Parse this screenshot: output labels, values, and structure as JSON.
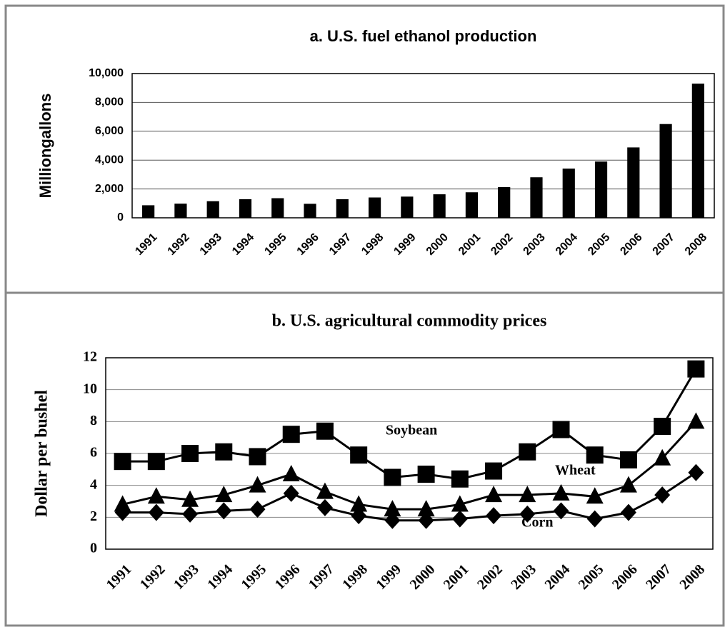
{
  "chart_data": [
    {
      "type": "bar",
      "title": "a. U.S. fuel ethanol production",
      "y_label": "Milliongallons",
      "categories": [
        "1991",
        "1992",
        "1993",
        "1994",
        "1995",
        "1996",
        "1997",
        "1998",
        "1999",
        "2000",
        "2001",
        "2002",
        "2003",
        "2004",
        "2005",
        "2006",
        "2007",
        "2008"
      ],
      "values": [
        870,
        980,
        1150,
        1290,
        1360,
        970,
        1290,
        1410,
        1470,
        1630,
        1770,
        2130,
        2810,
        3410,
        3900,
        4880,
        6500,
        9300
      ],
      "color": "#000000",
      "ylim": [
        0,
        10000
      ],
      "yticks": [
        0,
        {
          "value": 2000,
          "label": "2,000"
        },
        {
          "value": 4000,
          "label": "4,000"
        },
        {
          "value": 6000,
          "label": "6,000"
        },
        {
          "value": 8000,
          "label": "8,000"
        },
        {
          "value": 10000,
          "label": "10,000"
        }
      ],
      "grid": true
    },
    {
      "type": "line",
      "title": "b. U.S. agricultural commodity prices",
      "y_label": "Dollar per bushel",
      "categories": [
        "1991",
        "1992",
        "1993",
        "1994",
        "1995",
        "1996",
        "1997",
        "1998",
        "1999",
        "2000",
        "2001",
        "2002",
        "2003",
        "2004",
        "2005",
        "2006",
        "2007",
        "2008"
      ],
      "series": [
        {
          "name": "Soybean",
          "color": "#000000",
          "marker": "square",
          "values": [
            5.5,
            5.5,
            6.0,
            6.1,
            5.8,
            7.2,
            7.4,
            5.9,
            4.5,
            4.7,
            4.4,
            4.9,
            6.1,
            7.5,
            5.9,
            5.6,
            7.7,
            11.3
          ]
        },
        {
          "name": "Wheat",
          "color": "#000000",
          "marker": "triangle",
          "values": [
            2.8,
            3.3,
            3.1,
            3.4,
            4.0,
            4.7,
            3.6,
            2.8,
            2.5,
            2.5,
            2.8,
            3.4,
            3.4,
            3.5,
            3.3,
            4.0,
            5.7,
            8.0
          ]
        },
        {
          "name": "Corn",
          "color": "#000000",
          "marker": "diamond",
          "values": [
            2.3,
            2.3,
            2.2,
            2.4,
            2.5,
            3.5,
            2.6,
            2.1,
            1.8,
            1.8,
            1.9,
            2.1,
            2.2,
            2.4,
            1.9,
            2.3,
            3.4,
            4.8
          ]
        }
      ],
      "ylim": [
        0,
        12
      ],
      "yticks": [
        0,
        2,
        4,
        6,
        8,
        10,
        12
      ],
      "grid": true
    }
  ]
}
